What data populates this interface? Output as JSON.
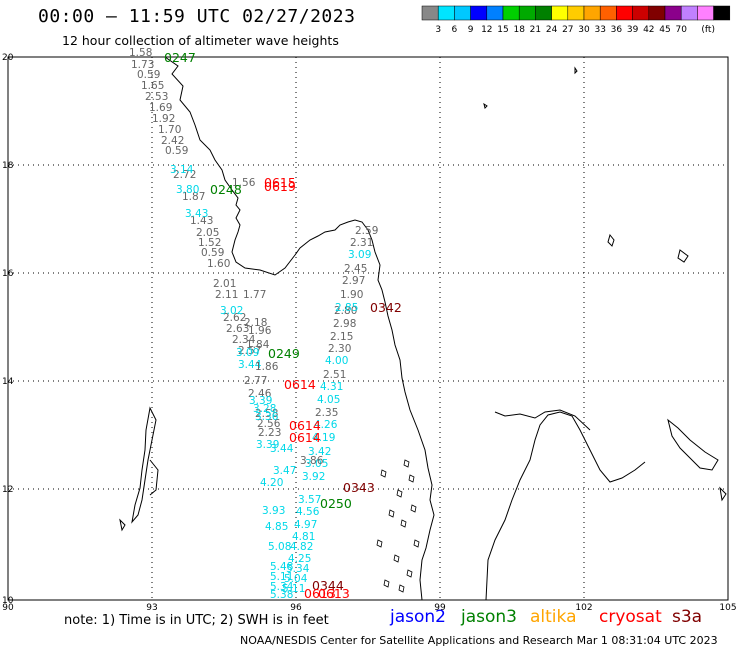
{
  "header": {
    "title": "00:00 – 11:59 UTC 02/27/2023",
    "subtitle": "12 hour collection of altimeter wave heights"
  },
  "color_scale": {
    "unit": "(ft)",
    "colors": [
      "#888888",
      "#00e5ff",
      "#00c8ff",
      "#0000ff",
      "#0080ff",
      "#00d000",
      "#00aa00",
      "#008000",
      "#ffff00",
      "#ffcc00",
      "#ffa500",
      "#ff6000",
      "#ff0000",
      "#cc0000",
      "#800000",
      "#8b008b",
      "#c080ff",
      "#ff80ff",
      "#000000"
    ],
    "labels": [
      "3",
      "6",
      "9",
      "12",
      "15",
      "18",
      "21",
      "24",
      "27",
      "30",
      "33",
      "36",
      "39",
      "42",
      "45",
      "70"
    ]
  },
  "map": {
    "lon_labels": [
      "90",
      "93",
      "96",
      "99",
      "102",
      "105"
    ],
    "lat_labels": [
      "20",
      "18",
      "16",
      "14",
      "12",
      "10"
    ],
    "pass_times": [
      {
        "text": "0247",
        "color": "#008000"
      },
      {
        "text": "0248",
        "color": "#008000"
      },
      {
        "text": "0615",
        "color": "#ff0000"
      },
      {
        "text": "0619",
        "color": "#ff0000"
      },
      {
        "text": "0342",
        "color": "#800000"
      },
      {
        "text": "0249",
        "color": "#008000"
      },
      {
        "text": "0614",
        "color": "#ff0000"
      },
      {
        "text": "0614",
        "color": "#ff0000"
      },
      {
        "text": "0614",
        "color": "#ff0000"
      },
      {
        "text": "0343",
        "color": "#800000"
      },
      {
        "text": "0250",
        "color": "#008000"
      },
      {
        "text": "0344",
        "color": "#800000"
      },
      {
        "text": "0613",
        "color": "#ff0000"
      },
      {
        "text": "0613",
        "color": "#ff0000"
      }
    ],
    "gray_track": [
      "1.58",
      "1.73",
      "0.59",
      "1.65",
      "2.53",
      "1.69",
      "1.92",
      "1.70",
      "2.42",
      "0.59",
      "2.72",
      "1.87",
      "1.43",
      "2.05",
      "1.52",
      "0.59",
      "1.60",
      "2.01",
      "2.11",
      "2.62",
      "2.63",
      "2.34",
      "2.57",
      "2.77",
      "2.46",
      "2.58",
      "2.56",
      "2.23"
    ],
    "cyan_track": [
      "3.14",
      "3.80",
      "3.43",
      "3.02",
      "3.09",
      "3.44",
      "3.39",
      "3.28",
      "3.36",
      "3.39",
      "3.44",
      "3.47",
      "4.20",
      "3.93",
      "4.85",
      "5.08",
      "5.48",
      "5.11",
      "5.34",
      "5.38"
    ],
    "gray_track_east": [
      "2.59",
      "2.31",
      "2.45",
      "2.97",
      "1.90",
      "2.80",
      "2.98",
      "2.15",
      "2.30",
      "2.51",
      "2.35"
    ],
    "cyan_track_east": [
      "3.09",
      "2.85",
      "4.00",
      "4.31",
      "4.05",
      "4.26",
      "4.19",
      "3.42",
      "3.05",
      "3.92",
      "3.57",
      "4.56",
      "4.97",
      "4.81",
      "4.82",
      "4.25",
      "5.34",
      "5.04",
      "5.11"
    ],
    "misc_labels": [
      "1.56",
      "2.18",
      "1.96",
      "1.84",
      "1.86",
      "1.77",
      "3.86"
    ]
  },
  "footer": {
    "note": "note: 1) Time is in UTC; 2) SWH is in feet",
    "satellites": [
      {
        "name": "jason2",
        "color": "#0000ff"
      },
      {
        "name": "jason3",
        "color": "#008000"
      },
      {
        "name": "altika",
        "color": "#ffa500"
      },
      {
        "name": "cryosat",
        "color": "#ff0000"
      },
      {
        "name": "s3a",
        "color": "#800000"
      }
    ],
    "credit": "NOAA/NESDIS Center for Satellite Applications and Research   Mar  1 08:31:04 UTC 2023"
  }
}
